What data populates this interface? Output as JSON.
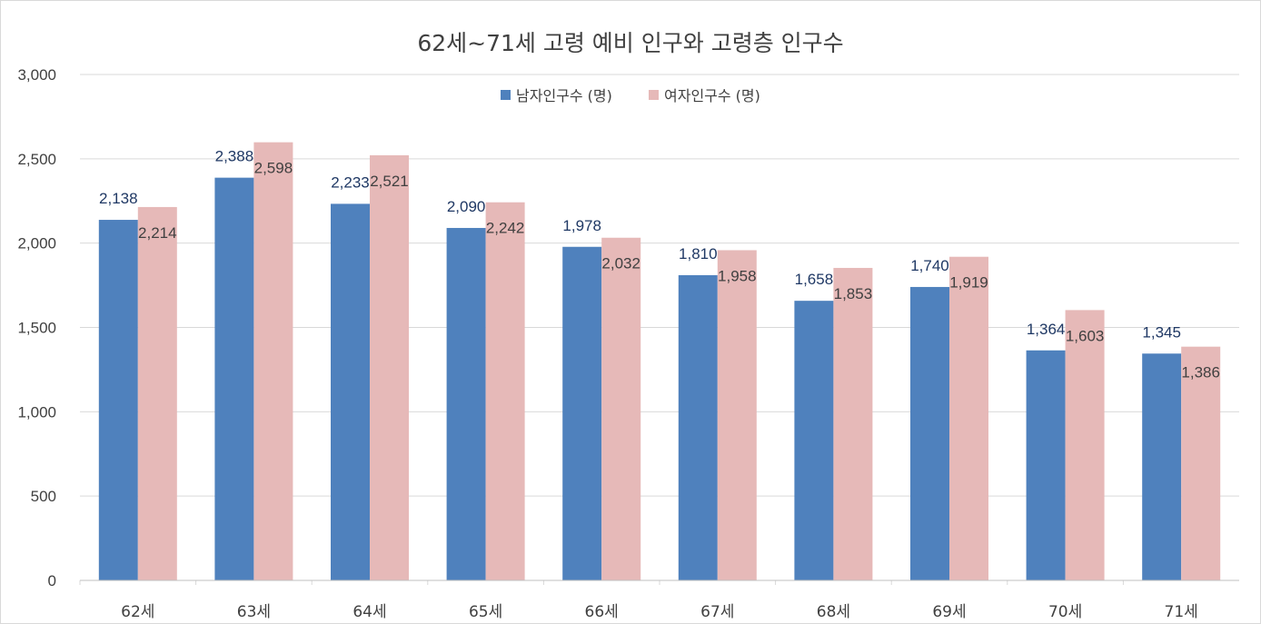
{
  "chart_data": {
    "type": "bar",
    "title": "62세~71세 고령 예비 인구와 고령층 인구수",
    "categories": [
      "62세",
      "63세",
      "64세",
      "65세",
      "66세",
      "67세",
      "68세",
      "69세",
      "70세",
      "71세"
    ],
    "series": [
      {
        "name": "남자인구수 (명)",
        "color": "#4f81bd",
        "label_color": "#1f3864",
        "values": [
          2138,
          2388,
          2233,
          2090,
          1978,
          1810,
          1658,
          1740,
          1364,
          1345
        ],
        "labels": [
          "2,138",
          "2,388",
          "2,233",
          "2,090",
          "1,978",
          "1,810",
          "1,658",
          "1,740",
          "1,364",
          "1,345"
        ]
      },
      {
        "name": "여자인구수 (명)",
        "color": "#e6b9b8",
        "label_color": "#404040",
        "values": [
          2214,
          2598,
          2521,
          2242,
          2032,
          1958,
          1853,
          1919,
          1603,
          1386
        ],
        "labels": [
          "2,214",
          "2,598",
          "2,521",
          "2,242",
          "2,032",
          "1,958",
          "1,853",
          "1,919",
          "1,603",
          "1,386"
        ]
      }
    ],
    "ylim": [
      0,
      3000
    ],
    "yticks": [
      0,
      500,
      1000,
      1500,
      2000,
      2500,
      3000
    ],
    "ytick_labels": [
      "0",
      "500",
      "1,000",
      "1,500",
      "2,000",
      "2,500",
      "3,000"
    ],
    "grid": true,
    "legend_position": "top-center",
    "xlabel": "",
    "ylabel": ""
  }
}
